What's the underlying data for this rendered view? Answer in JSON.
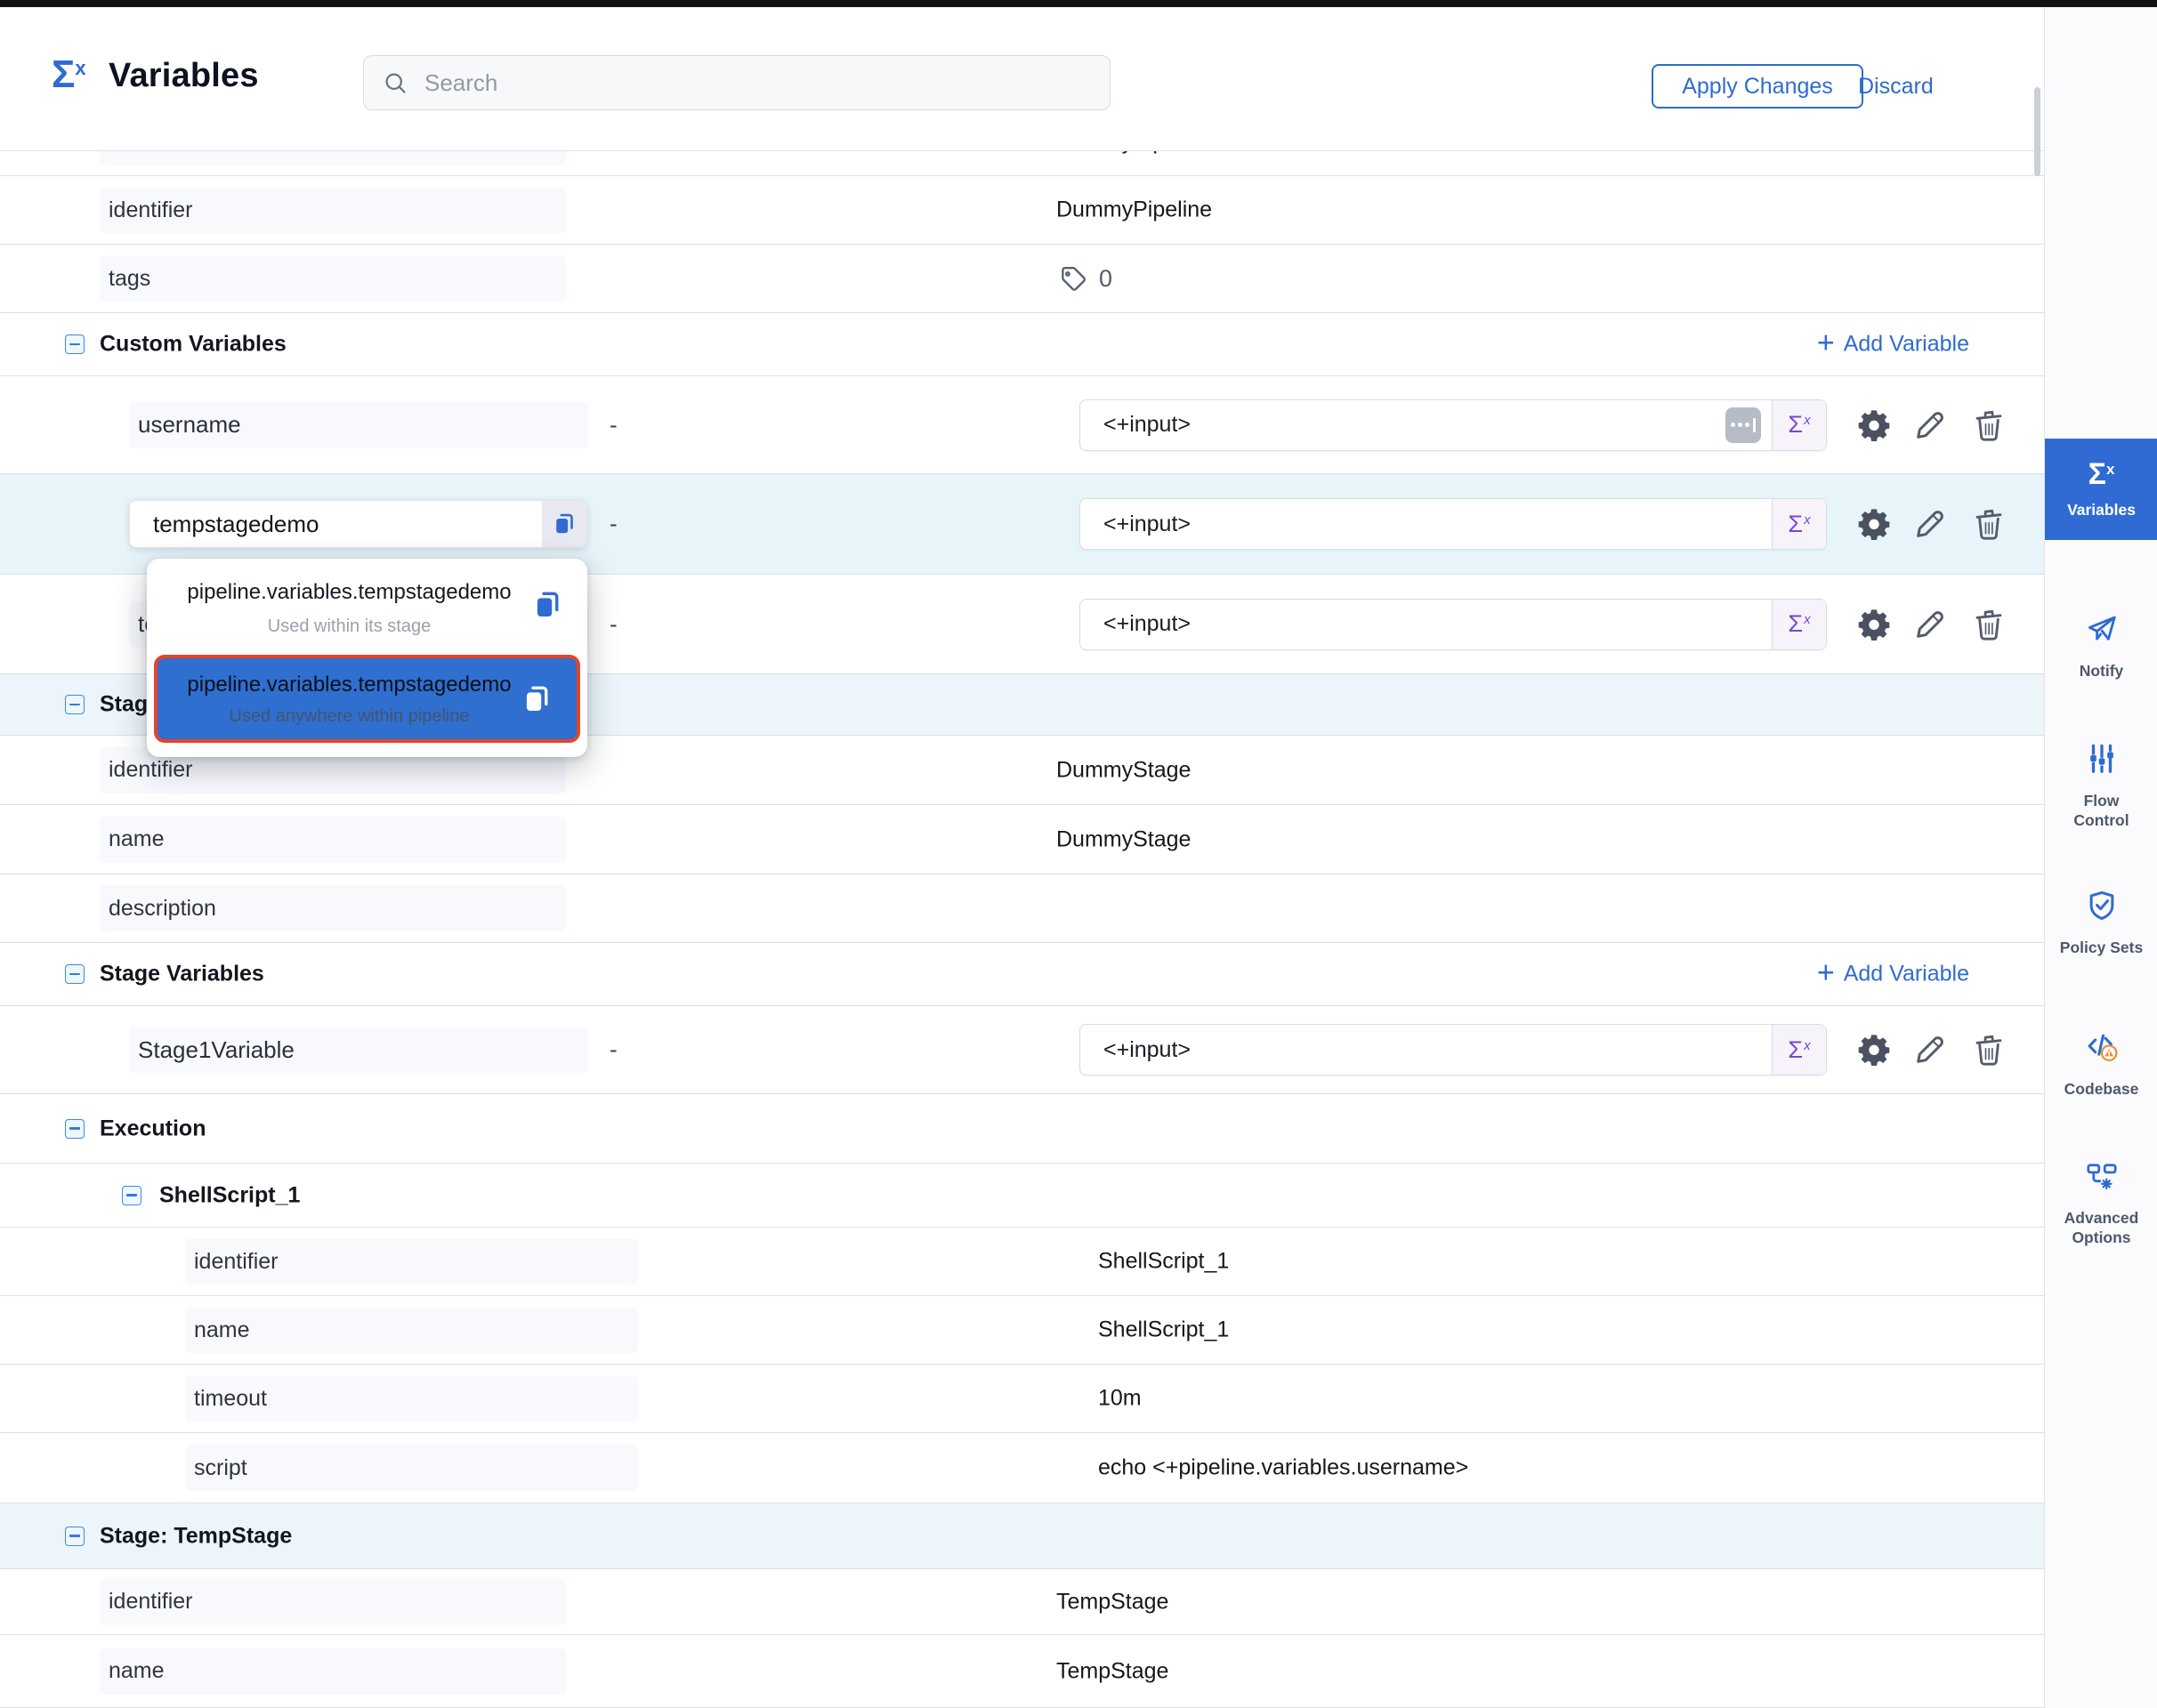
{
  "header": {
    "logo_sigma": "Σ",
    "logo_sup": "x",
    "title": "Variables",
    "search_placeholder": "Search",
    "apply_button": "Apply Changes",
    "discard_button": "Discard"
  },
  "colors": {
    "accent_blue": "#2f6bd2",
    "row_highlight": "#e7f4fa",
    "section_tint": "#ecf6fa",
    "dropdown_selected_bg": "#2e6fd0",
    "selection_outline_red": "#e2462b",
    "expression_purple": "#7645d9"
  },
  "table": {
    "add_variable_label": "Add Variable",
    "type_dash": "-",
    "rows": [
      {
        "type": "kv",
        "partial": true,
        "label": "",
        "value": "DummyPipeline"
      },
      {
        "type": "kv",
        "label": "identifier",
        "value": "DummyPipeline",
        "level": 0
      },
      {
        "type": "tags",
        "label": "tags",
        "count": "0"
      },
      {
        "type": "section",
        "title": "Custom Variables",
        "level": 0,
        "add_variable": true
      },
      {
        "type": "variable",
        "name": "username",
        "value": "<+input>",
        "dots": true
      },
      {
        "type": "variable",
        "name": "tempstagedemo",
        "value": "<+input>",
        "editing": true,
        "highlight": true
      },
      {
        "type": "variable",
        "name": "te",
        "value": "<+input>"
      },
      {
        "type": "section",
        "title": "Stage: DummyStage",
        "level": 0,
        "tint": true
      },
      {
        "type": "kv",
        "label": "identifier",
        "value": "DummyStage",
        "level": 0
      },
      {
        "type": "kv",
        "label": "name",
        "value": "DummyStage",
        "level": 0
      },
      {
        "type": "kv",
        "label": "description",
        "value": "",
        "level": 0
      },
      {
        "type": "section",
        "title": "Stage Variables",
        "level": 0,
        "add_variable": true
      },
      {
        "type": "variable",
        "name": "Stage1Variable",
        "value": "<+input>"
      },
      {
        "type": "section",
        "title": "Execution",
        "level": 0
      },
      {
        "type": "section",
        "title": "ShellScript_1",
        "level": 1
      },
      {
        "type": "kv",
        "label": "identifier",
        "value": "ShellScript_1",
        "level": 1
      },
      {
        "type": "kv",
        "label": "name",
        "value": "ShellScript_1",
        "level": 1
      },
      {
        "type": "kv",
        "label": "timeout",
        "value": "10m",
        "level": 1
      },
      {
        "type": "kv",
        "label": "script",
        "value": "echo <+pipeline.variables.username>",
        "level": 1
      },
      {
        "type": "section",
        "title": "Stage: TempStage",
        "level": 0,
        "tint": true
      },
      {
        "type": "kv",
        "label": "identifier",
        "value": "TempStage",
        "level": 0
      },
      {
        "type": "kv",
        "label": "name",
        "value": "TempStage",
        "level": 0
      }
    ]
  },
  "popup": {
    "items": [
      {
        "text": "pipeline.variables.tempstagedemo",
        "subtext": "Used within its stage",
        "selected": false
      },
      {
        "text": "pipeline.variables.tempstagedemo",
        "subtext": "Used anywhere within pipeline",
        "selected": true
      }
    ]
  },
  "sidebar": {
    "items": [
      {
        "label": "Variables",
        "icon": "sigma-x",
        "selected": true
      },
      {
        "label": "Notify",
        "icon": "paper-plane",
        "selected": false
      },
      {
        "label": "Flow Control",
        "icon": "sliders",
        "selected": false
      },
      {
        "label": "Policy Sets",
        "icon": "shield-check",
        "selected": false
      },
      {
        "label": "Codebase",
        "icon": "code-warning",
        "selected": false
      },
      {
        "label": "Advanced Options",
        "icon": "flow-gear",
        "selected": false
      }
    ]
  }
}
